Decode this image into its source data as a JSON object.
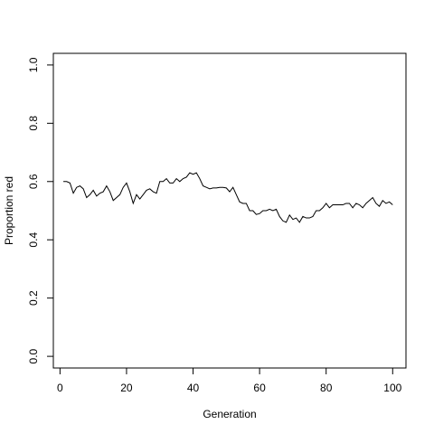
{
  "chart_data": {
    "type": "line",
    "title": "",
    "xlabel": "Generation",
    "ylabel": "Proportion red",
    "xlim": [
      -2,
      104
    ],
    "ylim": [
      -0.04,
      1.04
    ],
    "grid": false,
    "legend": "none",
    "xticks": [
      0,
      20,
      40,
      60,
      80,
      100
    ],
    "xtick_labels": [
      "0",
      "20",
      "40",
      "60",
      "80",
      "100"
    ],
    "yticks": [
      0.0,
      0.2,
      0.4,
      0.6,
      0.8,
      1.0
    ],
    "ytick_labels": [
      "0.0",
      "0.2",
      "0.4",
      "0.6",
      "0.8",
      "1.0"
    ],
    "line_color": "#000000",
    "series": [
      {
        "x": [
          1,
          2,
          3,
          4,
          5,
          6,
          7,
          8,
          9,
          10,
          11,
          12,
          13,
          14,
          15,
          16,
          17,
          18,
          19,
          20,
          21,
          22,
          23,
          24,
          25,
          26,
          27,
          28,
          29,
          30,
          31,
          32,
          33,
          34,
          35,
          36,
          37,
          38,
          39,
          40,
          41,
          42,
          43,
          44,
          45,
          46,
          47,
          48,
          49,
          50,
          51,
          52,
          53,
          54,
          55,
          56,
          57,
          58,
          59,
          60,
          61,
          62,
          63,
          64,
          65,
          66,
          67,
          68,
          69,
          70,
          71,
          72,
          73,
          74,
          75,
          76,
          77,
          78,
          79,
          80,
          81,
          82,
          83,
          84,
          85,
          86,
          87,
          88,
          89,
          90,
          91,
          92,
          93,
          94,
          95,
          96,
          97,
          98,
          99,
          100
        ],
        "values": [
          0.6,
          0.6,
          0.595,
          0.56,
          0.58,
          0.585,
          0.575,
          0.545,
          0.555,
          0.57,
          0.55,
          0.56,
          0.565,
          0.585,
          0.565,
          0.535,
          0.545,
          0.555,
          0.58,
          0.595,
          0.565,
          0.525,
          0.555,
          0.54,
          0.555,
          0.57,
          0.575,
          0.565,
          0.56,
          0.6,
          0.6,
          0.61,
          0.595,
          0.595,
          0.61,
          0.6,
          0.61,
          0.615,
          0.63,
          0.625,
          0.63,
          0.61,
          0.585,
          0.58,
          0.575,
          0.578,
          0.578,
          0.58,
          0.58,
          0.578,
          0.565,
          0.58,
          0.555,
          0.53,
          0.525,
          0.525,
          0.5,
          0.5,
          0.487,
          0.49,
          0.5,
          0.5,
          0.505,
          0.5,
          0.505,
          0.48,
          0.465,
          0.46,
          0.485,
          0.47,
          0.475,
          0.46,
          0.48,
          0.475,
          0.475,
          0.48,
          0.5,
          0.5,
          0.51,
          0.525,
          0.51,
          0.52,
          0.52,
          0.52,
          0.52,
          0.525,
          0.525,
          0.51,
          0.525,
          0.52,
          0.51,
          0.525,
          0.535,
          0.545,
          0.525,
          0.515,
          0.535,
          0.525,
          0.53,
          0.52
        ]
      }
    ]
  }
}
